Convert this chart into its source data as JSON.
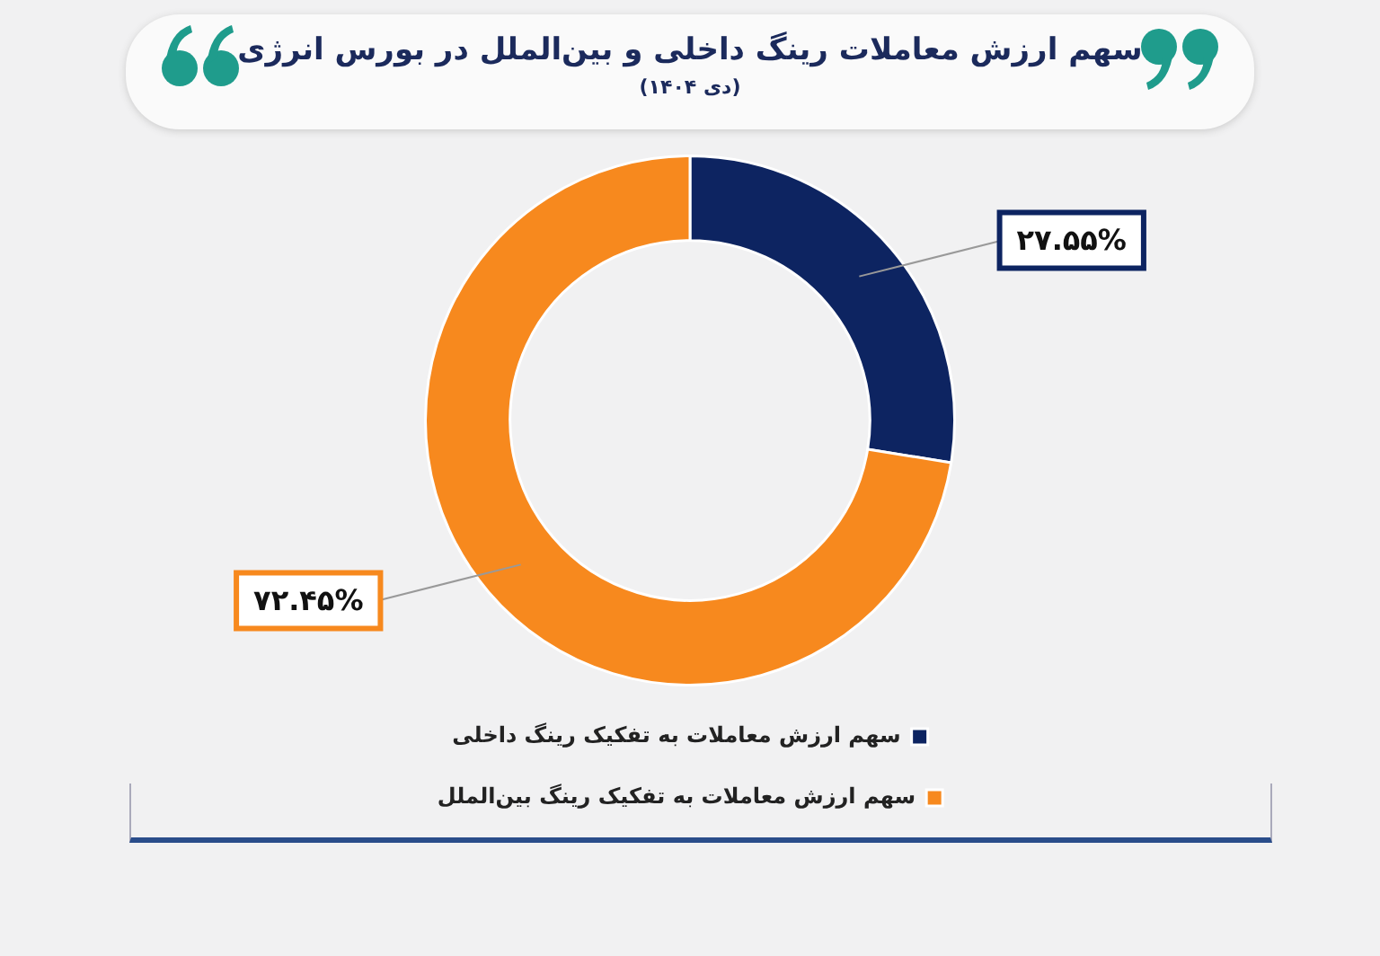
{
  "chart_data": {
    "type": "donut",
    "title": "سهم ارزش معاملات رینگ داخلی و بین‌الملل در بورس انرژی",
    "subtitle": "(دی ۱۴۰۴)",
    "categories": [
      "سهم ارزش معاملات به تفکیک رینگ داخلی",
      "سهم ارزش معاملات به تفکیک رینگ بین‌الملل"
    ],
    "values": [
      27.55,
      72.45
    ],
    "colors": [
      "#0d2461",
      "#f7891e"
    ],
    "value_labels": [
      "۲۷.۵۵%",
      "۷۲.۴۵%"
    ],
    "legend": "bottom"
  }
}
